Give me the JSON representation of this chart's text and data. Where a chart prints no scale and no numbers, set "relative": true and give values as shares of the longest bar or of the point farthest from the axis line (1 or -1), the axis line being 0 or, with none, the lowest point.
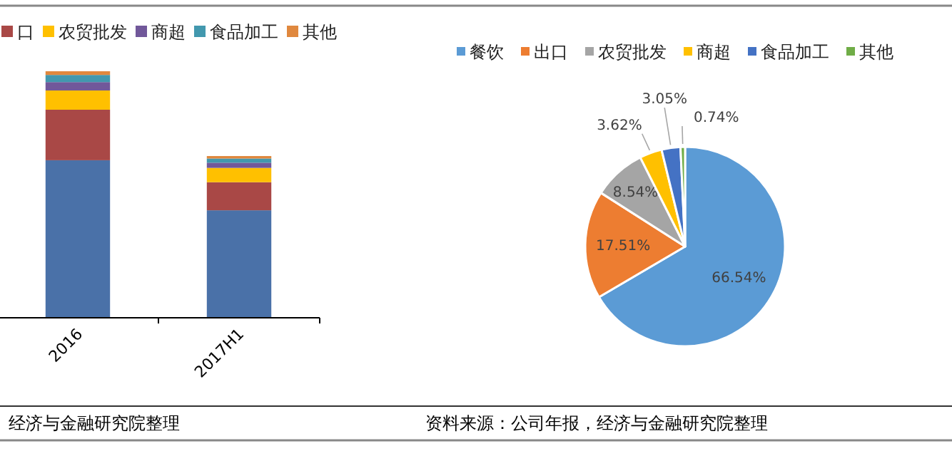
{
  "chart_data": [
    {
      "type": "bar",
      "stacked": true,
      "relative": true,
      "legend": "top",
      "categories": [
        "2016",
        "2017H1"
      ],
      "series": [
        {
          "color": "#4a71a8",
          "values": [
            0.639,
            0.436
          ]
        },
        {
          "name": "口",
          "color": "#a94846",
          "values": [
            0.205,
            0.114
          ]
        },
        {
          "name": "农贸批发",
          "color": "#ffc000",
          "values": [
            0.078,
            0.058
          ]
        },
        {
          "name": "商超",
          "color": "#71589a",
          "values": [
            0.034,
            0.021
          ]
        },
        {
          "name": "食品加工",
          "color": "#4298ae",
          "values": [
            0.029,
            0.017
          ]
        },
        {
          "name": "其他",
          "color": "#e0883e",
          "values": [
            0.015,
            0.01
          ]
        }
      ],
      "annotations": [
        "经济与金融研究院整理"
      ]
    },
    {
      "type": "pie",
      "legend": "top",
      "categories": [
        "餐饮",
        "出口",
        "农贸批发",
        "商超",
        "食品加工",
        "其他"
      ],
      "values": [
        66.54,
        17.51,
        8.54,
        3.62,
        3.05,
        0.74
      ],
      "value_labels": [
        "66.54%",
        "17.51%",
        "8.54%",
        "3.62%",
        "3.05%",
        "0.74%"
      ],
      "colors": [
        "#5b9bd5",
        "#ed7d31",
        "#a5a5a5",
        "#ffc000",
        "#4472c4",
        "#70ad47"
      ],
      "annotations": [
        "资料来源：公司年报，经济与金融研究院整理"
      ]
    }
  ]
}
